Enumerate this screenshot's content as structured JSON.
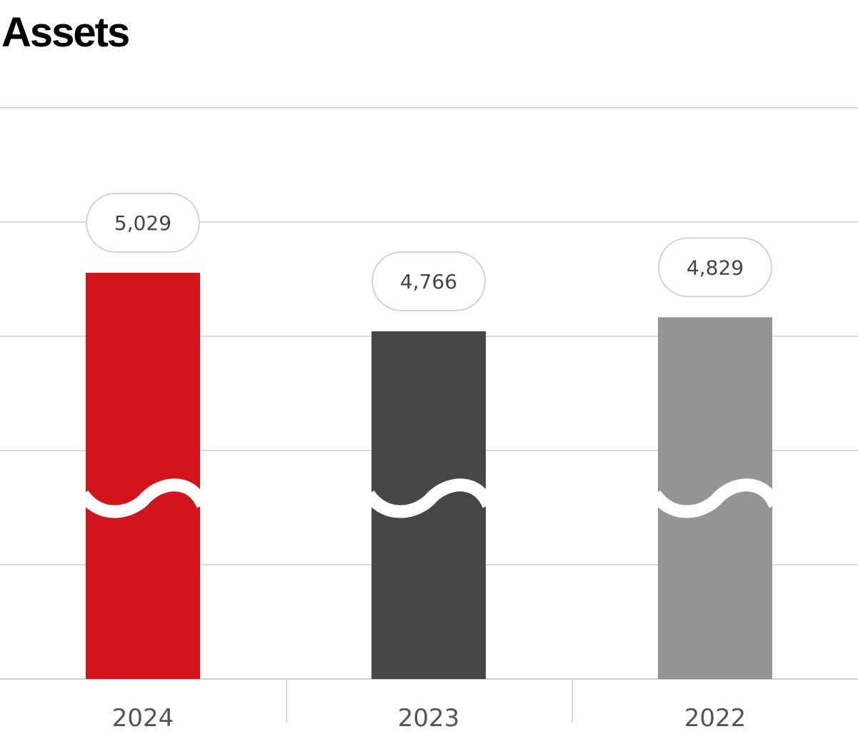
{
  "chart_data": {
    "type": "bar",
    "title": "Assets",
    "categories": [
      "2024",
      "2023",
      "2022"
    ],
    "values": [
      5029,
      4766,
      4829
    ],
    "value_labels": [
      "5,029",
      "4,766",
      "4,829"
    ],
    "colors": [
      "#d4141b",
      "#474747",
      "#959595"
    ],
    "axis_break": true,
    "grid": true,
    "xlabel": "",
    "ylabel": ""
  }
}
